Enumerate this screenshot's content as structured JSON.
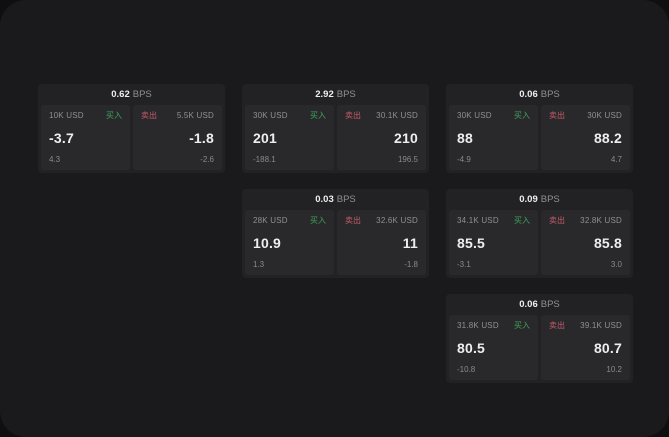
{
  "theme": {
    "bg_outer": "#0f0f10",
    "bg_surface": "#1a1a1c",
    "bg_card": "#222224",
    "bg_panel": "#29292b",
    "text_white": "#eeeef0",
    "text_gray": "#909094",
    "accent_green": "#3fa35c",
    "accent_red": "#c75a6c"
  },
  "labels": {
    "bps": "BPS",
    "buy": "买入",
    "sell": "卖出"
  },
  "cards": [
    {
      "row": 1,
      "col": 1,
      "bps": "0.62",
      "buy": {
        "amount": "10K USD",
        "price": "-3.7",
        "delta": "4.3"
      },
      "sell": {
        "amount": "5.5K USD",
        "price": "-1.8",
        "delta": "-2.6"
      }
    },
    {
      "row": 1,
      "col": 2,
      "bps": "2.92",
      "buy": {
        "amount": "30K USD",
        "price": "201",
        "delta": "-188.1"
      },
      "sell": {
        "amount": "30.1K USD",
        "price": "210",
        "delta": "196.5"
      }
    },
    {
      "row": 1,
      "col": 3,
      "bps": "0.06",
      "buy": {
        "amount": "30K USD",
        "price": "88",
        "delta": "-4.9"
      },
      "sell": {
        "amount": "30K USD",
        "price": "88.2",
        "delta": "4.7"
      }
    },
    {
      "row": 2,
      "col": 2,
      "bps": "0.03",
      "buy": {
        "amount": "28K USD",
        "price": "10.9",
        "delta": "1.3"
      },
      "sell": {
        "amount": "32.6K USD",
        "price": "11",
        "delta": "-1.8"
      }
    },
    {
      "row": 2,
      "col": 3,
      "bps": "0.09",
      "buy": {
        "amount": "34.1K USD",
        "price": "85.5",
        "delta": "-3.1"
      },
      "sell": {
        "amount": "32.8K USD",
        "price": "85.8",
        "delta": "3.0"
      }
    },
    {
      "row": 3,
      "col": 3,
      "bps": "0.06",
      "buy": {
        "amount": "31.8K USD",
        "price": "80.5",
        "delta": "-10.8"
      },
      "sell": {
        "amount": "39.1K USD",
        "price": "80.7",
        "delta": "10.2"
      }
    }
  ]
}
